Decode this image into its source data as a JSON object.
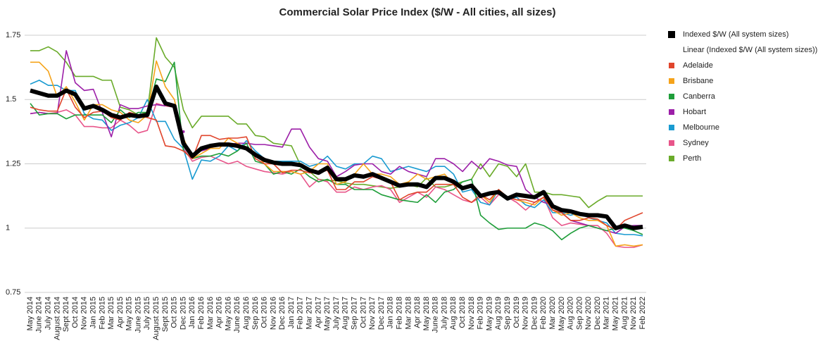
{
  "chart_data": {
    "type": "line",
    "title": "Commercial Solar Price Index ($/W - All cities, all sizes)",
    "categories": [
      "May 2014",
      "June 2014",
      "July 2014",
      "August 2014",
      "Sept 2014",
      "Oct 2014",
      "Nov 2014",
      "Jan 2015",
      "Feb 2015",
      "Mar 2015",
      "Apr 2015",
      "May 2015",
      "June 2015",
      "July 2015",
      "August 2015",
      "Sept 2015",
      "Oct 2015",
      "Dec 2015",
      "Jan 2016",
      "Feb 2016",
      "Mar 2016",
      "Apr 2016",
      "May 2016",
      "June 2016",
      "Aug 2016",
      "Sep 2016",
      "Oct 2016",
      "Nov 2016",
      "Dec 2016",
      "Jan 2017",
      "Feb 2017",
      "Mar 2017",
      "Apr 2017",
      "May 2017",
      "July 2017",
      "Aug 2017",
      "Sep 2017",
      "Oct 2017",
      "Nov 2017",
      "Dec 2017",
      "Jan 2018",
      "Feb 2018",
      "Mar 2018",
      "Apr 2018",
      "May 2018",
      "June 2018",
      "July 2018",
      "Aug 2018",
      "Oct 2018",
      "Nov 2018",
      "Feb 2019",
      "May 2019",
      "Aug 2019",
      "Sep 2019",
      "Oct 2019",
      "Nov 2019",
      "Dec 2019",
      "Feb 2020",
      "Mar 2020",
      "May 2020",
      "Aug 2020",
      "Sep 2020",
      "Nov 2020",
      "Dec 2020",
      "Mar 2021",
      "May 2021",
      "Aug 2021",
      "Nov 2021",
      "Feb 2022"
    ],
    "trendline_label": "Linear (Indexed $/W (All system sizes))",
    "series": [
      {
        "name": "Indexed $/W (All system sizes)",
        "color": "#000000",
        "values": [
          1.535,
          1.525,
          1.515,
          1.515,
          1.535,
          1.52,
          1.465,
          1.475,
          1.46,
          1.44,
          1.43,
          1.44,
          1.435,
          1.44,
          1.55,
          1.485,
          1.475,
          1.33,
          1.28,
          1.31,
          1.32,
          1.325,
          1.325,
          1.32,
          1.31,
          1.285,
          1.265,
          1.255,
          1.25,
          1.25,
          1.245,
          1.225,
          1.215,
          1.235,
          1.19,
          1.19,
          1.205,
          1.2,
          1.21,
          1.195,
          1.18,
          1.165,
          1.17,
          1.17,
          1.16,
          1.195,
          1.195,
          1.18,
          1.155,
          1.165,
          1.125,
          1.135,
          1.14,
          1.115,
          1.13,
          1.125,
          1.12,
          1.14,
          1.085,
          1.07,
          1.065,
          1.055,
          1.05,
          1.05,
          1.045,
          1.0,
          1.01,
          1.0,
          1.005
        ]
      },
      {
        "name": "Adelaide",
        "color": "#e0452c",
        "values": [
          1.47,
          1.46,
          1.455,
          1.455,
          1.54,
          1.47,
          1.43,
          1.45,
          1.455,
          1.43,
          1.42,
          1.45,
          1.44,
          1.43,
          1.42,
          1.32,
          1.315,
          1.3,
          1.27,
          1.36,
          1.36,
          1.345,
          1.35,
          1.35,
          1.355,
          1.27,
          1.25,
          1.25,
          1.215,
          1.225,
          1.225,
          1.215,
          1.215,
          1.225,
          1.15,
          1.15,
          1.18,
          1.18,
          1.2,
          1.19,
          1.18,
          1.11,
          1.13,
          1.14,
          1.14,
          1.17,
          1.17,
          1.17,
          1.12,
          1.1,
          1.13,
          1.11,
          1.15,
          1.12,
          1.11,
          1.11,
          1.1,
          1.12,
          1.07,
          1.06,
          1.03,
          1.03,
          1.04,
          1.035,
          1.01,
          0.995,
          1.03,
          1.045,
          1.06
        ]
      },
      {
        "name": "Brisbane",
        "color": "#f5a31a",
        "values": [
          1.645,
          1.645,
          1.61,
          1.51,
          1.55,
          1.49,
          1.42,
          1.48,
          1.48,
          1.46,
          1.45,
          1.42,
          1.41,
          1.44,
          1.65,
          1.55,
          1.5,
          1.35,
          1.27,
          1.29,
          1.31,
          1.31,
          1.35,
          1.33,
          1.31,
          1.29,
          1.25,
          1.22,
          1.22,
          1.22,
          1.21,
          1.22,
          1.25,
          1.25,
          1.17,
          1.18,
          1.21,
          1.25,
          1.21,
          1.21,
          1.2,
          1.17,
          1.18,
          1.21,
          1.19,
          1.2,
          1.21,
          1.17,
          1.15,
          1.17,
          1.13,
          1.1,
          1.15,
          1.12,
          1.11,
          1.1,
          1.09,
          1.12,
          1.07,
          1.05,
          1.06,
          1.04,
          1.03,
          1.03,
          1.01,
          0.93,
          0.935,
          0.93,
          0.935
        ]
      },
      {
        "name": "Canberra",
        "color": "#1f9e3a",
        "values": [
          1.485,
          1.44,
          1.445,
          1.445,
          1.425,
          1.44,
          1.44,
          1.44,
          1.44,
          1.41,
          1.46,
          1.43,
          1.45,
          1.45,
          1.58,
          1.57,
          1.645,
          1.3,
          1.27,
          1.28,
          1.28,
          1.29,
          1.28,
          1.3,
          1.33,
          1.26,
          1.25,
          1.21,
          1.22,
          1.21,
          1.23,
          1.2,
          1.18,
          1.19,
          1.17,
          1.17,
          1.15,
          1.15,
          1.15,
          1.13,
          1.12,
          1.11,
          1.105,
          1.1,
          1.13,
          1.1,
          1.14,
          1.15,
          1.18,
          1.19,
          1.05,
          1.02,
          0.995,
          1.0,
          1.0,
          1.0,
          1.02,
          1.01,
          0.99,
          0.955,
          0.98,
          1.0,
          1.01,
          1.0,
          0.99,
          1.0,
          1.0,
          0.99,
          0.975
        ]
      },
      {
        "name": "Hobart",
        "color": "#9c1fa8",
        "values": [
          1.445,
          1.45,
          1.445,
          1.445,
          1.69,
          1.565,
          1.535,
          1.54,
          1.45,
          1.355,
          1.48,
          1.465,
          1.465,
          1.475,
          1.48,
          1.475,
          null,
          1.375,
          null,
          1.3,
          1.31,
          1.33,
          1.325,
          1.33,
          1.33,
          1.325,
          1.325,
          1.32,
          1.315,
          1.385,
          1.385,
          1.315,
          1.27,
          1.26,
          1.2,
          1.22,
          1.245,
          1.25,
          1.25,
          1.22,
          1.21,
          1.24,
          1.22,
          1.21,
          1.2,
          1.27,
          1.27,
          1.25,
          1.22,
          1.26,
          1.23,
          1.27,
          1.26,
          1.245,
          1.24,
          1.15,
          1.12,
          1.1,
          1.09,
          1.06,
          1.03,
          1.02,
          1.01,
          1.0,
          0.99,
          0.98,
          1.005,
          1.01,
          1.01
        ]
      },
      {
        "name": "Melbourne",
        "color": "#1a9bd1",
        "values": [
          1.56,
          1.575,
          1.555,
          1.555,
          1.535,
          1.535,
          1.445,
          1.425,
          1.42,
          1.38,
          1.4,
          1.41,
          1.43,
          1.5,
          1.415,
          1.415,
          1.345,
          1.31,
          1.19,
          1.265,
          1.26,
          1.28,
          1.32,
          1.3,
          1.34,
          1.3,
          1.27,
          1.26,
          1.26,
          1.26,
          1.26,
          1.24,
          1.25,
          1.28,
          1.24,
          1.23,
          1.25,
          1.25,
          1.28,
          1.27,
          1.22,
          1.23,
          1.24,
          1.23,
          1.22,
          1.24,
          1.24,
          1.21,
          1.14,
          1.15,
          1.1,
          1.09,
          1.15,
          1.11,
          1.12,
          1.09,
          1.08,
          1.11,
          1.06,
          1.06,
          1.05,
          1.06,
          1.04,
          1.03,
          1.02,
          0.98,
          0.975,
          0.975,
          0.97
        ]
      },
      {
        "name": "Sydney",
        "color": "#e8558a",
        "values": [
          1.445,
          1.45,
          1.445,
          1.45,
          1.46,
          1.44,
          1.395,
          1.395,
          1.39,
          1.39,
          1.42,
          1.4,
          1.37,
          1.38,
          1.485,
          1.475,
          1.47,
          1.31,
          1.26,
          1.275,
          1.28,
          1.265,
          1.25,
          1.26,
          1.24,
          1.23,
          1.22,
          1.215,
          1.21,
          1.22,
          1.21,
          1.16,
          1.19,
          1.18,
          1.14,
          1.14,
          1.16,
          1.15,
          1.16,
          1.165,
          1.15,
          1.1,
          1.12,
          1.14,
          1.12,
          1.16,
          1.15,
          1.13,
          1.11,
          1.1,
          1.12,
          1.09,
          1.13,
          1.12,
          1.1,
          1.07,
          1.1,
          1.12,
          1.04,
          1.01,
          1.02,
          1.015,
          1.01,
          1.01,
          0.98,
          0.93,
          0.925,
          0.925,
          0.935
        ]
      },
      {
        "name": "Perth",
        "color": "#6aab2a",
        "values": [
          1.69,
          1.69,
          1.705,
          1.685,
          1.645,
          1.59,
          1.59,
          1.59,
          1.575,
          1.575,
          1.47,
          1.46,
          1.44,
          1.45,
          1.74,
          1.665,
          1.625,
          1.46,
          1.39,
          1.435,
          1.435,
          1.435,
          1.435,
          1.405,
          1.405,
          1.36,
          1.355,
          1.33,
          1.325,
          1.32,
          1.245,
          1.22,
          1.19,
          1.185,
          1.185,
          1.175,
          1.17,
          1.17,
          1.165,
          1.16,
          1.155,
          1.16,
          1.17,
          1.16,
          1.195,
          1.16,
          1.16,
          1.17,
          1.18,
          1.19,
          1.25,
          1.2,
          1.25,
          1.24,
          1.2,
          1.25,
          1.14,
          1.14,
          1.13,
          1.13,
          1.125,
          1.12,
          1.08,
          1.105,
          1.125,
          1.125,
          1.125,
          1.125,
          1.125
        ]
      }
    ],
    "ylim": [
      0.75,
      1.75
    ],
    "yticks": [
      0.75,
      1,
      1.25,
      1.5,
      1.75
    ],
    "grid": true,
    "legend": "right"
  }
}
